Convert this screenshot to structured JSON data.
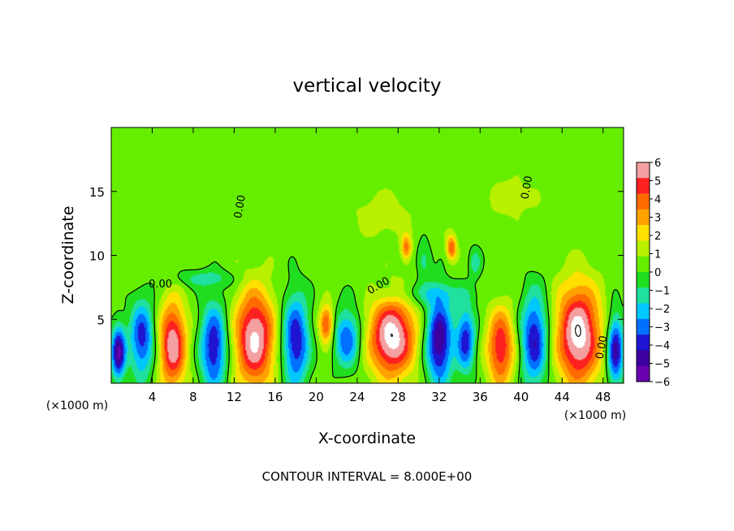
{
  "chart_data": {
    "type": "heatmap",
    "title": "vertical velocity",
    "xlabel": "X-coordinate",
    "ylabel": "Z-coordinate",
    "x_unit_left": "(×1000 m)",
    "x_unit_right": "(×1000 m)",
    "xlim": [
      0,
      50
    ],
    "ylim": [
      0,
      20
    ],
    "x_ticks": [
      4,
      8,
      12,
      16,
      20,
      24,
      28,
      32,
      36,
      40,
      44,
      48
    ],
    "y_ticks": [
      5,
      10,
      15
    ],
    "contour_interval_text": "CONTOUR INTERVAL = 8.000E+00",
    "contour_labels": [
      {
        "text": "0.00",
        "x": 12.6,
        "y": 13.8,
        "rotate": -80
      },
      {
        "text": "0.00",
        "x": 4.8,
        "y": 7.7,
        "rotate": 0
      },
      {
        "text": "0.00",
        "x": 26.1,
        "y": 7.6,
        "rotate": -30
      },
      {
        "text": "0.00",
        "x": 40.6,
        "y": 15.3,
        "rotate": -80
      },
      {
        "text": "0.00",
        "x": 47.9,
        "y": 2.8,
        "rotate": -80
      }
    ],
    "colorbar": {
      "levels": [
        "6",
        "5",
        "4",
        "3",
        "2",
        "1",
        "0",
        "−1",
        "−2",
        "−3",
        "−4",
        "−5",
        "−6"
      ],
      "colors": [
        "#f4a0a0",
        "#ff2020",
        "#ff6a00",
        "#ffa200",
        "#ffe000",
        "#b8f000",
        "#66ee00",
        "#20dd20",
        "#20e0a0",
        "#00c8ff",
        "#0070ff",
        "#1e14d2",
        "#3c00a0",
        "#6a00b0"
      ]
    },
    "background_w": 0.5,
    "cells": [
      {
        "x": 0.7,
        "y": 2.4,
        "rx": 0.7,
        "ry": 2.1,
        "w": -6.5
      },
      {
        "x": 3.0,
        "y": 3.5,
        "rx": 1.2,
        "ry": 3.0,
        "w": -5.0
      },
      {
        "x": 6.0,
        "y": 3.0,
        "rx": 1.3,
        "ry": 3.3,
        "w": 6.5
      },
      {
        "x": 10.0,
        "y": 2.8,
        "rx": 1.3,
        "ry": 3.4,
        "w": -5.5
      },
      {
        "x": 14.0,
        "y": 3.5,
        "rx": 1.9,
        "ry": 3.7,
        "w": 7.0
      },
      {
        "x": 18.0,
        "y": 3.3,
        "rx": 1.3,
        "ry": 3.6,
        "w": -5.5
      },
      {
        "x": 21.0,
        "y": 4.6,
        "rx": 0.7,
        "ry": 1.5,
        "w": 5.0
      },
      {
        "x": 23.0,
        "y": 3.5,
        "rx": 1.3,
        "ry": 2.3,
        "w": -4.5
      },
      {
        "x": 27.4,
        "y": 3.6,
        "rx": 2.2,
        "ry": 3.0,
        "w": 7.5
      },
      {
        "x": 32.0,
        "y": 3.3,
        "rx": 1.3,
        "ry": 3.4,
        "w": -6.5
      },
      {
        "x": 34.6,
        "y": 3.4,
        "rx": 0.9,
        "ry": 2.6,
        "w": -5.0
      },
      {
        "x": 38.0,
        "y": 2.8,
        "rx": 1.3,
        "ry": 3.0,
        "w": 5.5
      },
      {
        "x": 41.3,
        "y": 3.4,
        "rx": 1.3,
        "ry": 3.6,
        "w": -5.5
      },
      {
        "x": 45.6,
        "y": 3.8,
        "rx": 2.1,
        "ry": 3.8,
        "w": 7.5
      },
      {
        "x": 49.2,
        "y": 2.6,
        "rx": 0.8,
        "ry": 2.8,
        "w": -6.0
      },
      {
        "x": 28.8,
        "y": 10.6,
        "rx": 0.5,
        "ry": 1.0,
        "w": 4.0
      },
      {
        "x": 33.2,
        "y": 10.6,
        "rx": 0.5,
        "ry": 1.0,
        "w": 4.5
      },
      {
        "x": 30.5,
        "y": 9.6,
        "rx": 0.7,
        "ry": 1.4,
        "w": -2.0
      },
      {
        "x": 35.5,
        "y": 9.4,
        "rx": 0.6,
        "ry": 1.2,
        "w": -2.0
      },
      {
        "x": 26.5,
        "y": 13.2,
        "rx": 2.5,
        "ry": 1.6,
        "w": 1.4
      },
      {
        "x": 39.0,
        "y": 14.5,
        "rx": 2.2,
        "ry": 1.5,
        "w": 1.2
      },
      {
        "x": 9.0,
        "y": 8.2,
        "rx": 3.2,
        "ry": 0.7,
        "w": -1.8
      },
      {
        "x": 31.0,
        "y": 7.0,
        "rx": 4.5,
        "ry": 0.9,
        "w": -1.6
      }
    ]
  }
}
